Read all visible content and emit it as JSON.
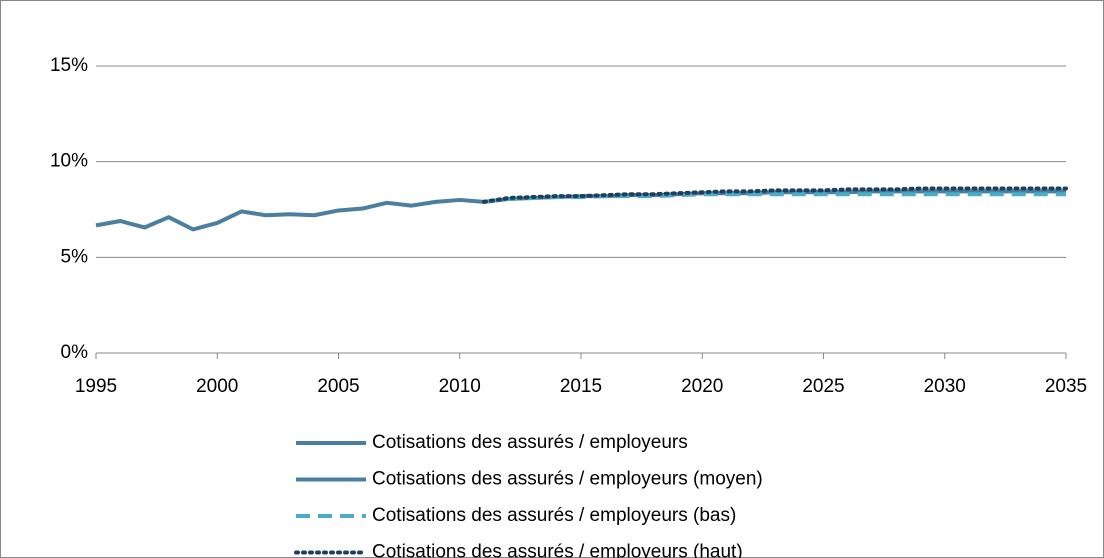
{
  "chart_data": {
    "type": "line",
    "x": [
      1995,
      1996,
      1997,
      1998,
      1999,
      2000,
      2001,
      2002,
      2003,
      2004,
      2005,
      2006,
      2007,
      2008,
      2009,
      2010,
      2011,
      2012,
      2013,
      2014,
      2015,
      2016,
      2017,
      2018,
      2019,
      2020,
      2021,
      2022,
      2023,
      2024,
      2025,
      2026,
      2027,
      2028,
      2029,
      2030,
      2031,
      2032,
      2033,
      2034,
      2035
    ],
    "series": [
      {
        "name": "Cotisations des assurés / employeurs",
        "color": "#4a7fa0",
        "style": "solid",
        "values": [
          6.67,
          6.9,
          6.56,
          7.1,
          6.46,
          6.8,
          7.4,
          7.2,
          7.25,
          7.2,
          7.45,
          7.55,
          7.85,
          7.7,
          7.9,
          8.0,
          7.9,
          null,
          null,
          null,
          null,
          null,
          null,
          null,
          null,
          null,
          null,
          null,
          null,
          null,
          null,
          null,
          null,
          null,
          null,
          null,
          null,
          null,
          null,
          null,
          null
        ]
      },
      {
        "name": "Cotisations des assurés / employeurs (moyen)",
        "color": "#4a7fa0",
        "style": "solid",
        "values": [
          null,
          null,
          null,
          null,
          null,
          null,
          null,
          null,
          null,
          null,
          null,
          null,
          null,
          null,
          null,
          null,
          7.9,
          8.05,
          8.1,
          8.15,
          8.2,
          8.2,
          8.25,
          8.25,
          8.3,
          8.35,
          8.35,
          8.35,
          8.4,
          8.4,
          8.4,
          8.4,
          8.45,
          8.45,
          8.45,
          8.45,
          8.45,
          8.45,
          8.45,
          8.45,
          8.45
        ]
      },
      {
        "name": "Cotisations des assurés / employeurs (bas)",
        "color": "#4bacc6",
        "style": "dash",
        "values": [
          null,
          null,
          null,
          null,
          null,
          null,
          null,
          null,
          null,
          null,
          null,
          null,
          null,
          null,
          null,
          null,
          7.9,
          8.05,
          8.1,
          8.15,
          8.15,
          8.2,
          8.2,
          8.2,
          8.25,
          8.3,
          8.3,
          8.3,
          8.3,
          8.3,
          8.3,
          8.3,
          8.3,
          8.3,
          8.3,
          8.3,
          8.3,
          8.3,
          8.3,
          8.3,
          8.3
        ]
      },
      {
        "name": "Cotisations des assurés / employeurs (haut)",
        "color": "#1f3f5e",
        "style": "dot",
        "values": [
          null,
          null,
          null,
          null,
          null,
          null,
          null,
          null,
          null,
          null,
          null,
          null,
          null,
          null,
          null,
          null,
          7.9,
          8.1,
          8.15,
          8.2,
          8.2,
          8.25,
          8.3,
          8.3,
          8.35,
          8.4,
          8.45,
          8.45,
          8.5,
          8.5,
          8.5,
          8.55,
          8.55,
          8.55,
          8.6,
          8.6,
          8.6,
          8.6,
          8.6,
          8.6,
          8.6
        ]
      }
    ],
    "xlim": [
      1995,
      2035
    ],
    "xticks": [
      1995,
      2000,
      2005,
      2010,
      2015,
      2020,
      2025,
      2030,
      2035
    ],
    "ylim": [
      0,
      15
    ],
    "yticks": [
      {
        "value": 0,
        "label": "0%"
      },
      {
        "value": 5,
        "label": "5%"
      },
      {
        "value": 10,
        "label": "10%"
      },
      {
        "value": 15,
        "label": "15%"
      }
    ],
    "grid": true,
    "legend": "bottom"
  }
}
